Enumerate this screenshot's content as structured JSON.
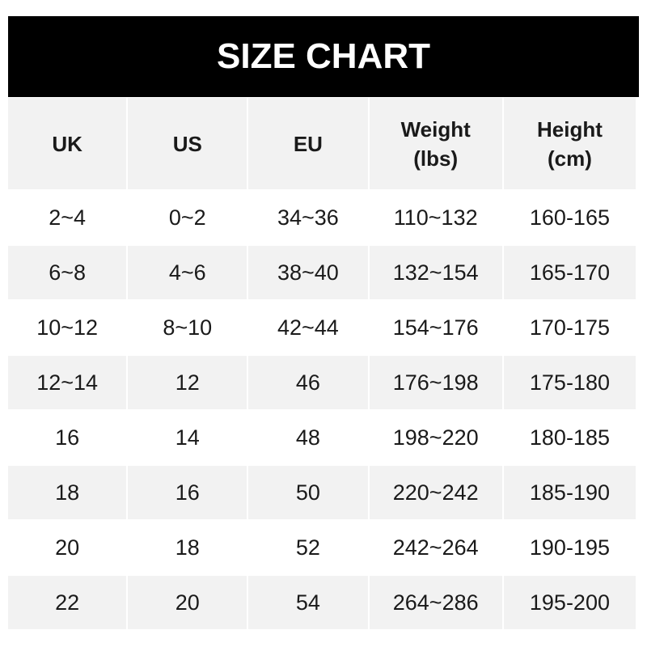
{
  "title": "SIZE CHART",
  "columns": [
    "UK",
    "US",
    "EU",
    "Weight\n(lbs)",
    "Height\n(cm)"
  ],
  "header": {
    "uk": "UK",
    "us": "US",
    "eu": "EU",
    "weight_line1": "Weight",
    "weight_line2": "(lbs)",
    "height_line1": "Height",
    "height_line2": "(cm)"
  },
  "rows": [
    [
      "2~4",
      "0~2",
      "34~36",
      "110~132",
      "160-165"
    ],
    [
      "6~8",
      "4~6",
      "38~40",
      "132~154",
      "165-170"
    ],
    [
      "10~12",
      "8~10",
      "42~44",
      "154~176",
      "170-175"
    ],
    [
      "12~14",
      "12",
      "46",
      "176~198",
      "175-180"
    ],
    [
      "16",
      "14",
      "48",
      "198~220",
      "180-185"
    ],
    [
      "18",
      "16",
      "50",
      "220~242",
      "185-190"
    ],
    [
      "20",
      "18",
      "52",
      "242~264",
      "190-195"
    ],
    [
      "22",
      "20",
      "54",
      "264~286",
      "195-200"
    ]
  ],
  "colors": {
    "title_bg": "#000000",
    "stripe": "#f2f2f2"
  }
}
